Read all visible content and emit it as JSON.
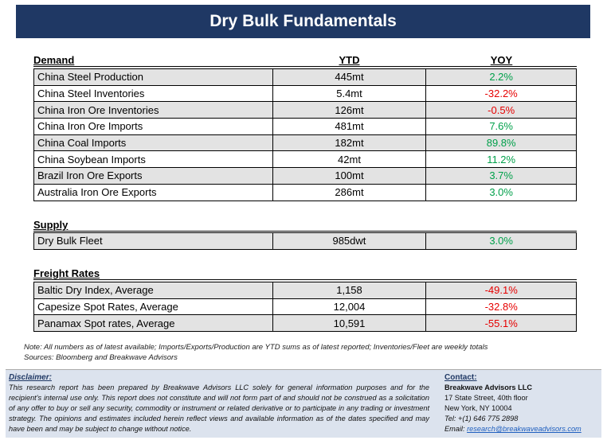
{
  "title": "Dry Bulk Fundamentals",
  "demand": {
    "header": {
      "label": "Demand",
      "ytd": "YTD",
      "yoy": "YOY"
    },
    "rows": [
      {
        "label": "China Steel Production",
        "ytd": "445mt",
        "yoy": "2.2%"
      },
      {
        "label": "China Steel Inventories",
        "ytd": "5.4mt",
        "yoy": "-32.2%"
      },
      {
        "label": "China Iron Ore Inventories",
        "ytd": "126mt",
        "yoy": "-0.5%"
      },
      {
        "label": "China Iron Ore Imports",
        "ytd": "481mt",
        "yoy": "7.6%"
      },
      {
        "label": "China Coal Imports",
        "ytd": "182mt",
        "yoy": "89.8%"
      },
      {
        "label": "China Soybean Imports",
        "ytd": "42mt",
        "yoy": "11.2%"
      },
      {
        "label": "Brazil Iron Ore Exports",
        "ytd": "100mt",
        "yoy": "3.7%"
      },
      {
        "label": "Australia Iron Ore Exports",
        "ytd": "286mt",
        "yoy": "3.0%"
      }
    ]
  },
  "supply": {
    "header": "Supply",
    "rows": [
      {
        "label": "Dry Bulk Fleet",
        "ytd": "985dwt",
        "yoy": "3.0%"
      }
    ]
  },
  "freight": {
    "header": "Freight Rates",
    "rows": [
      {
        "label": "Baltic Dry Index, Average",
        "ytd": "1,158",
        "yoy": "-49.1%"
      },
      {
        "label": "Capesize Spot Rates, Average",
        "ytd": "12,004",
        "yoy": "-32.8%"
      },
      {
        "label": "Panamax Spot rates, Average",
        "ytd": "10,591",
        "yoy": "-55.1%"
      }
    ]
  },
  "notes": {
    "note": "Note:  All numbers as of latest available; Imports/Exports/Production are YTD sums as of latest reported; Inventories/Fleet are weekly totals",
    "sources": "Sources: Bloomberg and Breakwave Advisors"
  },
  "disclaimer": {
    "head": "Disclaimer:",
    "body": "This research report has been prepared by Breakwave Advisors LLC solely for general information purposes and for the recipient's internal use only. This report does not constitute and will not form part of and should not be construed as a solicitation of any offer to buy or sell any security, commodity or instrument or related derivative or to participate in any trading or investment strategy. The opinions and estimates included herein reflect views and available information as of the dates specified and may have been and may be subject to change without notice."
  },
  "contact": {
    "head": "Contact:",
    "firm": "Breakwave Advisors LLC",
    "street": "17 State Street, 40th floor",
    "city": "New York, NY 10004",
    "tel": "Tel: +(1) 646 775 2898",
    "email_label": "Email: ",
    "email": "research@breakwaveadvisors.com"
  },
  "colors": {
    "title_bg": "#1f3864",
    "positive": "#00a04a",
    "negative": "#e60000",
    "footer_bg": "#dce3ee",
    "row_shade": "#e3e3e3"
  }
}
